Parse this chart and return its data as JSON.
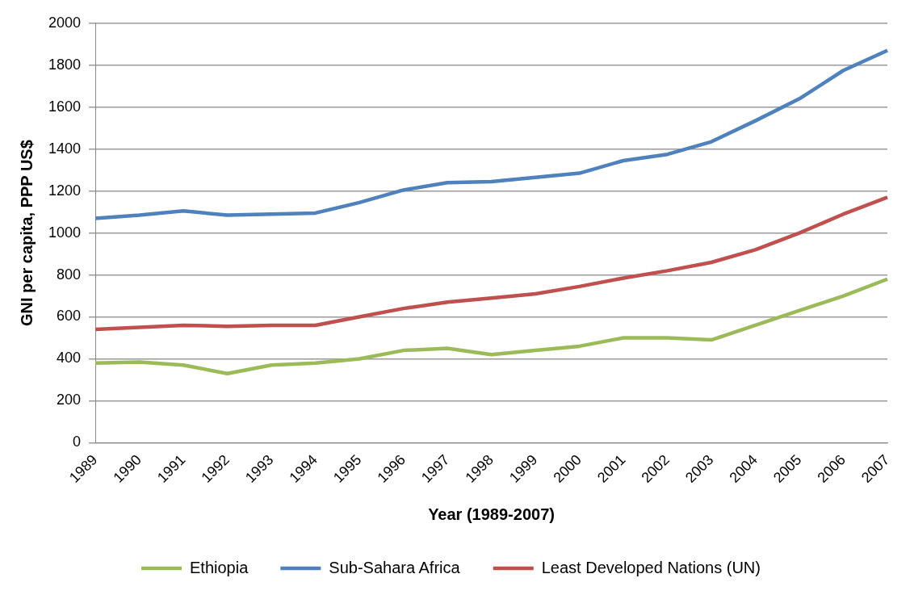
{
  "chart_data": {
    "type": "line",
    "xlabel": "Year (1989-2007)",
    "ylabel": "GNI per capita, PPP US$",
    "categories": [
      "1989",
      "1990",
      "1991",
      "1992",
      "1993",
      "1994",
      "1995",
      "1996",
      "1997",
      "1998",
      "1999",
      "2000",
      "2001",
      "2002",
      "2003",
      "2004",
      "2005",
      "2006",
      "2007"
    ],
    "series": [
      {
        "name": "Ethiopia",
        "color": "#9bbb59",
        "values": [
          380,
          385,
          370,
          330,
          370,
          380,
          400,
          440,
          450,
          420,
          440,
          460,
          500,
          500,
          490,
          560,
          630,
          700,
          780
        ]
      },
      {
        "name": "Sub-Sahara Africa",
        "color": "#4f81bd",
        "values": [
          1070,
          1085,
          1105,
          1085,
          1090,
          1095,
          1145,
          1205,
          1240,
          1245,
          1265,
          1285,
          1345,
          1375,
          1435,
          1535,
          1640,
          1775,
          1870
        ]
      },
      {
        "name": "Least Developed Nations (UN)",
        "color": "#c0504d",
        "values": [
          540,
          550,
          560,
          555,
          560,
          560,
          600,
          640,
          670,
          690,
          710,
          745,
          785,
          820,
          860,
          920,
          1000,
          1090,
          1170
        ]
      }
    ],
    "ylim": [
      0,
      2000
    ],
    "yticks": [
      0,
      200,
      400,
      600,
      800,
      1000,
      1200,
      1400,
      1600,
      1800,
      2000
    ],
    "grid": "y",
    "legend": "bottom",
    "marker": "none",
    "line_style": "solid"
  }
}
